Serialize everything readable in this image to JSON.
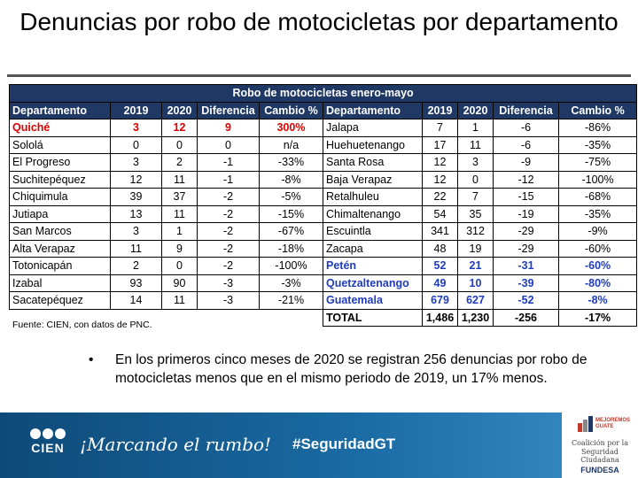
{
  "title": "Denuncias por robo de motocicletas por departamento",
  "table": {
    "caption": "Robo de motocicletas enero-mayo",
    "headers": [
      "Departamento",
      "2019",
      "2020",
      "Diferencia",
      "Cambio %",
      "Departamento",
      "2019",
      "2020",
      "Diferencia",
      "Cambio %"
    ],
    "left_rows": [
      [
        "Quiché",
        "3",
        "12",
        "9",
        "300%"
      ],
      [
        "Sololá",
        "0",
        "0",
        "0",
        "n/a"
      ],
      [
        "El Progreso",
        "3",
        "2",
        "-1",
        "-33%"
      ],
      [
        "Suchitepéquez",
        "12",
        "11",
        "-1",
        "-8%"
      ],
      [
        "Chiquimula",
        "39",
        "37",
        "-2",
        "-5%"
      ],
      [
        "Jutiapa",
        "13",
        "11",
        "-2",
        "-15%"
      ],
      [
        "San Marcos",
        "3",
        "1",
        "-2",
        "-67%"
      ],
      [
        "Alta Verapaz",
        "11",
        "9",
        "-2",
        "-18%"
      ],
      [
        "Totonicapán",
        "2",
        "0",
        "-2",
        "-100%"
      ],
      [
        "Izabal",
        "93",
        "90",
        "-3",
        "-3%"
      ],
      [
        "Sacatepéquez",
        "14",
        "11",
        "-3",
        "-21%"
      ]
    ],
    "right_rows": [
      [
        "Jalapa",
        "7",
        "1",
        "-6",
        "-86%"
      ],
      [
        "Huehuetenango",
        "17",
        "11",
        "-6",
        "-35%"
      ],
      [
        "Santa Rosa",
        "12",
        "3",
        "-9",
        "-75%"
      ],
      [
        "Baja Verapaz",
        "12",
        "0",
        "-12",
        "-100%"
      ],
      [
        "Retalhuleu",
        "22",
        "7",
        "-15",
        "-68%"
      ],
      [
        "Chimaltenango",
        "54",
        "35",
        "-19",
        "-35%"
      ],
      [
        "Escuintla",
        "341",
        "312",
        "-29",
        "-9%"
      ],
      [
        "Zacapa",
        "48",
        "19",
        "-29",
        "-60%"
      ],
      [
        "Petén",
        "52",
        "21",
        "-31",
        "-60%"
      ],
      [
        "Quetzaltenango",
        "49",
        "10",
        "-39",
        "-80%"
      ],
      [
        "Guatemala",
        "679",
        "627",
        "-52",
        "-8%"
      ]
    ],
    "total": [
      "TOTAL",
      "1,486",
      "1,230",
      "-256",
      "-17%"
    ],
    "highlight_red_left": [
      0
    ],
    "highlight_blue_right": [
      8,
      9,
      10
    ]
  },
  "source": "Fuente: CIEN, con datos de PNC.",
  "bullet": "En los primeros cinco meses de 2020 se registran 256 denuncias por robo de motocicletas menos que en el mismo periodo de 2019, un 17% menos.",
  "footer": {
    "logo_text": "CIEN",
    "slogan": "¡Marcando el rumbo!",
    "hashtag": "#SeguridadGT",
    "partner_small": "MEJOREMOS GUATE",
    "partner_line1": "Coalición por la",
    "partner_line2": "Seguridad Ciudadana",
    "partner_fund": "FUNDESA"
  },
  "colors": {
    "header_bg": "#1f3864",
    "highlight_red": "#e00000",
    "highlight_blue": "#1f3cbf",
    "footer_bg": "#1a6aa3"
  }
}
